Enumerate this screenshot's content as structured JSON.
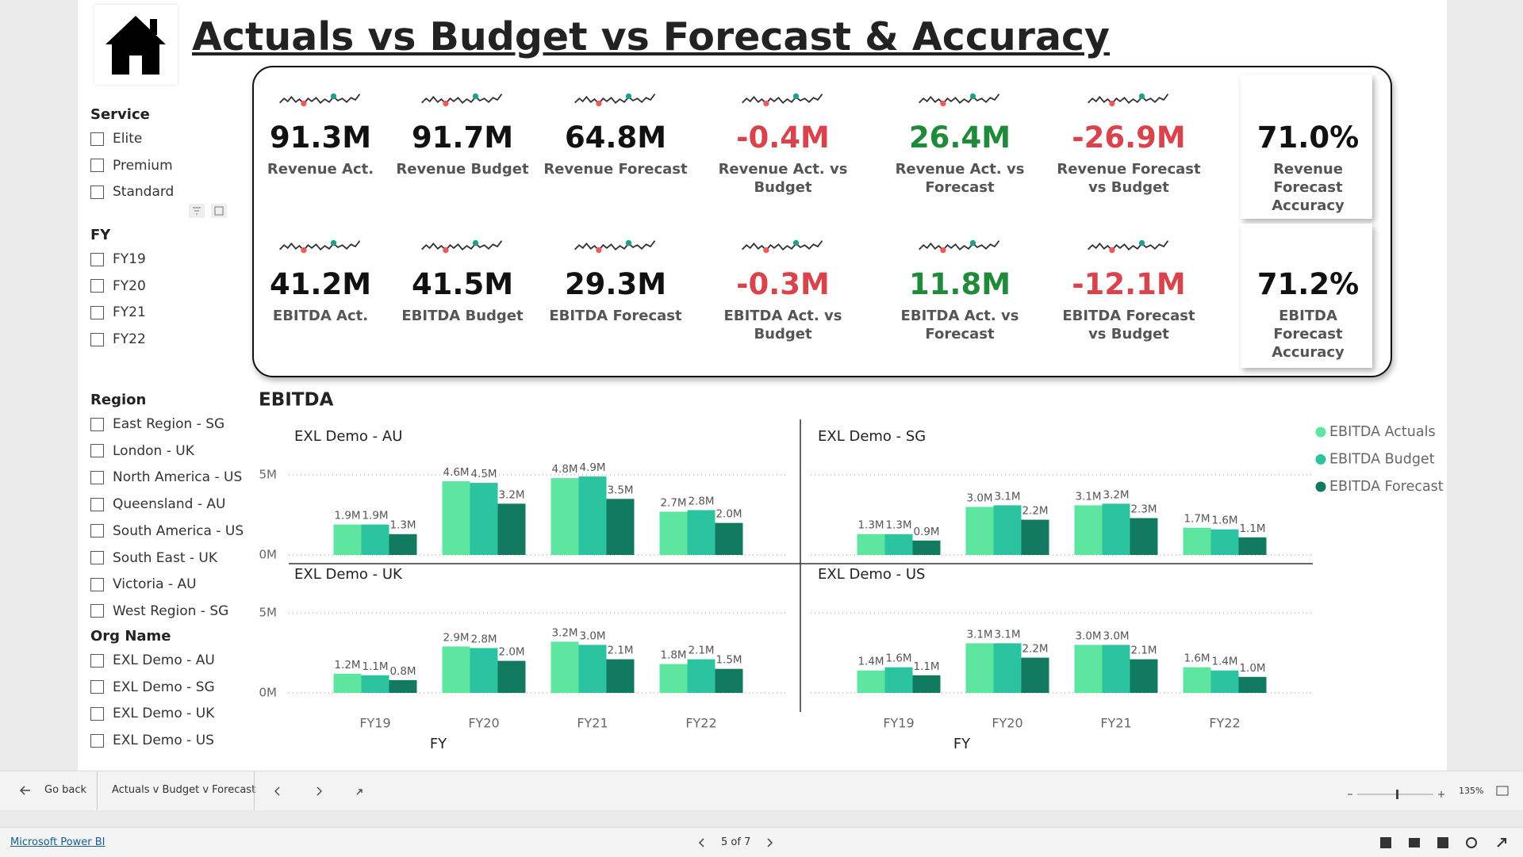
{
  "header": {
    "title": "Actuals vs Budget vs Forecast & Accuracy"
  },
  "slicers": [
    {
      "title": "Service",
      "items": [
        "Elite",
        "Premium",
        "Standard"
      ]
    },
    {
      "title": "FY",
      "items": [
        "FY19",
        "FY20",
        "FY21",
        "FY22"
      ]
    },
    {
      "title": "Region",
      "items": [
        "East Region - SG",
        "London - UK",
        "North America - US",
        "Queensland - AU",
        "South America - US",
        "South East - UK",
        "Victoria - AU",
        "West Region - SG"
      ]
    },
    {
      "title": "Org Name",
      "items": [
        "EXL Demo - AU",
        "EXL Demo - SG",
        "EXL Demo - UK",
        "EXL Demo - US"
      ]
    }
  ],
  "kpis": [
    {
      "value": "91.3M",
      "label": "Revenue Act.",
      "color": "#111111"
    },
    {
      "value": "91.7M",
      "label": "Revenue Budget",
      "color": "#111111"
    },
    {
      "value": "64.8M",
      "label": "Revenue Forecast",
      "color": "#111111"
    },
    {
      "value": "-0.4M",
      "label": "Revenue Act. vs Budget",
      "color": "#d9434b"
    },
    {
      "value": "26.4M",
      "label": "Revenue Act. vs Forecast",
      "color": "#1f8a3a"
    },
    {
      "value": "-26.9M",
      "label": "Revenue Forecast vs Budget",
      "color": "#d9434b"
    },
    {
      "value": "71.0%",
      "label": "Revenue Forecast Accuracy",
      "color": "#111111"
    },
    {
      "value": "41.2M",
      "label": "EBITDA Act.",
      "color": "#111111"
    },
    {
      "value": "41.5M",
      "label": "EBITDA Budget",
      "color": "#111111"
    },
    {
      "value": "29.3M",
      "label": "EBITDA Forecast",
      "color": "#111111"
    },
    {
      "value": "-0.3M",
      "label": "EBITDA Act. vs Budget",
      "color": "#d9434b"
    },
    {
      "value": "11.8M",
      "label": "EBITDA Act. vs Forecast",
      "color": "#1f8a3a"
    },
    {
      "value": "-12.1M",
      "label": "EBITDA Forecast vs Budget",
      "color": "#d9434b"
    },
    {
      "value": "71.2%",
      "label": "EBITDA Forecast Accuracy",
      "color": "#111111"
    }
  ],
  "chart_data": {
    "type": "bar",
    "title": "EBITDA",
    "categories": [
      "FY19",
      "FY20",
      "FY21",
      "FY22"
    ],
    "xlabel": "FY",
    "ylim": [
      0,
      6
    ],
    "yticks": [
      {
        "value": 0,
        "label": "0M"
      },
      {
        "value": 5,
        "label": "5M"
      }
    ],
    "grid": true,
    "legend": "right",
    "series": [
      {
        "name": "EBITDA Actuals",
        "color": "#5ee6a0"
      },
      {
        "name": "EBITDA Budget",
        "color": "#2cc4a0"
      },
      {
        "name": "EBITDA Forecast",
        "color": "#117a60"
      }
    ],
    "panels": [
      {
        "title": "EXL Demo - AU",
        "series": [
          {
            "values": [
              1.9,
              4.6,
              4.8,
              2.7
            ],
            "value_labels": [
              "1.9M",
              "4.6M",
              "4.8M",
              "2.7M"
            ]
          },
          {
            "values": [
              1.9,
              4.5,
              4.9,
              2.8
            ],
            "value_labels": [
              "1.9M",
              "4.5M",
              "4.9M",
              "2.8M"
            ]
          },
          {
            "values": [
              1.3,
              3.2,
              3.5,
              2.0
            ],
            "value_labels": [
              "1.3M",
              "3.2M",
              "3.5M",
              "2.0M"
            ]
          }
        ]
      },
      {
        "title": "EXL Demo - SG",
        "series": [
          {
            "values": [
              1.3,
              3.0,
              3.1,
              1.7
            ],
            "value_labels": [
              "1.3M",
              "3.0M",
              "3.1M",
              "1.7M"
            ]
          },
          {
            "values": [
              1.3,
              3.1,
              3.2,
              1.6
            ],
            "value_labels": [
              "1.3M",
              "3.1M",
              "3.2M",
              "1.6M"
            ]
          },
          {
            "values": [
              0.9,
              2.2,
              2.3,
              1.1
            ],
            "value_labels": [
              "0.9M",
              "2.2M",
              "2.3M",
              "1.1M"
            ]
          }
        ]
      },
      {
        "title": "EXL Demo - UK",
        "series": [
          {
            "values": [
              1.2,
              2.9,
              3.2,
              1.8
            ],
            "value_labels": [
              "1.2M",
              "2.9M",
              "3.2M",
              "1.8M"
            ]
          },
          {
            "values": [
              1.1,
              2.8,
              3.0,
              2.1
            ],
            "value_labels": [
              "1.1M",
              "2.8M",
              "3.0M",
              "2.1M"
            ]
          },
          {
            "values": [
              0.8,
              2.0,
              2.1,
              1.5
            ],
            "value_labels": [
              "0.8M",
              "2.0M",
              "2.1M",
              "1.5M"
            ]
          }
        ]
      },
      {
        "title": "EXL Demo - US",
        "series": [
          {
            "values": [
              1.4,
              3.1,
              3.0,
              1.6
            ],
            "value_labels": [
              "1.4M",
              "3.1M",
              "3.0M",
              "1.6M"
            ]
          },
          {
            "values": [
              1.6,
              3.1,
              3.0,
              1.4
            ],
            "value_labels": [
              "1.6M",
              "3.1M",
              "3.0M",
              "1.4M"
            ]
          },
          {
            "values": [
              1.1,
              2.2,
              2.1,
              1.0
            ],
            "value_labels": [
              "1.1M",
              "2.2M",
              "2.1M",
              "1.0M"
            ]
          }
        ]
      }
    ]
  },
  "footer": {
    "back": "Go back",
    "page_name": "Actuals v Budget v Forecast",
    "page_indicator": "5 of 7",
    "zoom": "135%",
    "brand": "Microsoft Power BI"
  }
}
